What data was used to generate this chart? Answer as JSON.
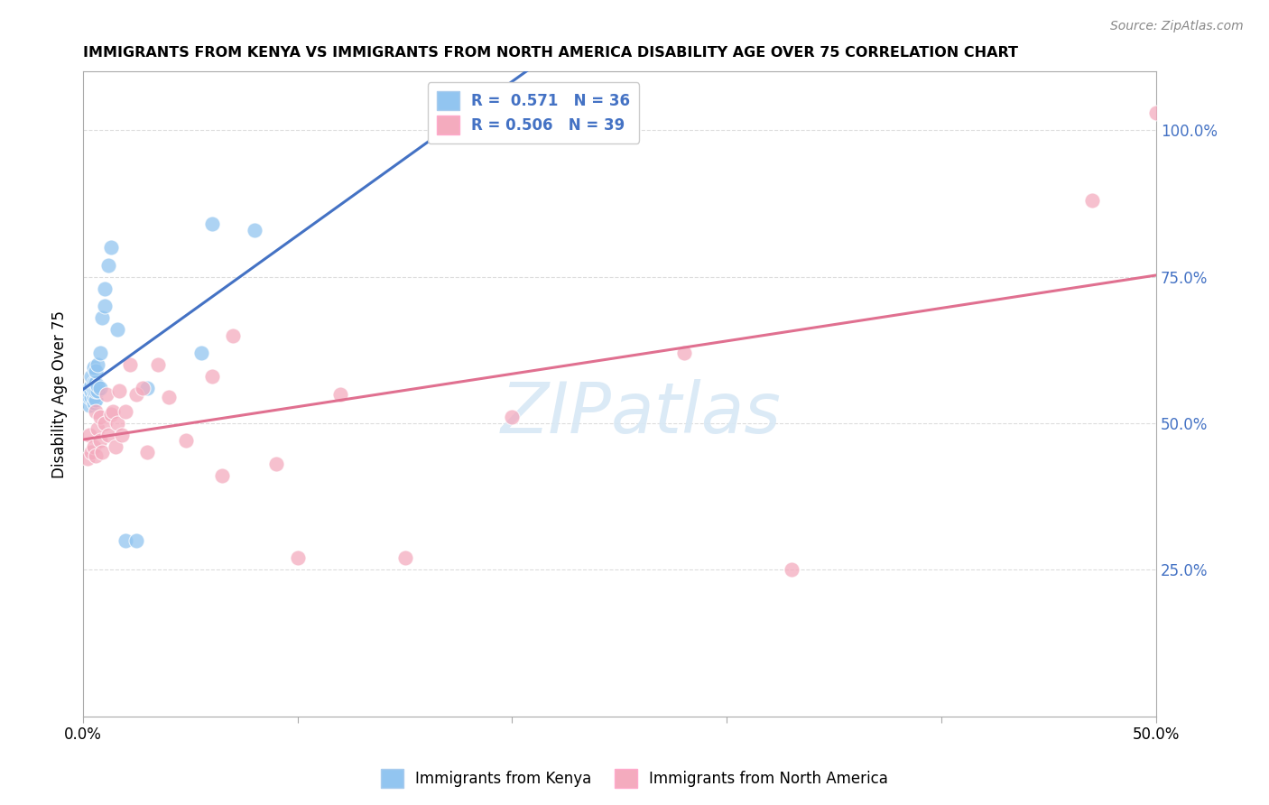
{
  "title": "IMMIGRANTS FROM KENYA VS IMMIGRANTS FROM NORTH AMERICA DISABILITY AGE OVER 75 CORRELATION CHART",
  "source": "Source: ZipAtlas.com",
  "ylabel": "Disability Age Over 75",
  "legend_label1": "Immigrants from Kenya",
  "legend_label2": "Immigrants from North America",
  "R1": "0.571",
  "N1": "36",
  "R2": "0.506",
  "N2": "39",
  "color_kenya": "#92C5F0",
  "color_na": "#F4ABBE",
  "color_line_kenya": "#4472C4",
  "color_line_na": "#E07090",
  "kenya_x": [
    0.001,
    0.002,
    0.002,
    0.003,
    0.003,
    0.003,
    0.004,
    0.004,
    0.004,
    0.004,
    0.005,
    0.005,
    0.005,
    0.005,
    0.005,
    0.006,
    0.006,
    0.006,
    0.006,
    0.007,
    0.007,
    0.007,
    0.008,
    0.008,
    0.009,
    0.01,
    0.01,
    0.012,
    0.013,
    0.016,
    0.02,
    0.025,
    0.03,
    0.055,
    0.06,
    0.08
  ],
  "kenya_y": [
    0.545,
    0.545,
    0.555,
    0.53,
    0.545,
    0.56,
    0.545,
    0.555,
    0.565,
    0.58,
    0.535,
    0.545,
    0.555,
    0.57,
    0.595,
    0.54,
    0.555,
    0.57,
    0.59,
    0.555,
    0.565,
    0.6,
    0.56,
    0.62,
    0.68,
    0.7,
    0.73,
    0.77,
    0.8,
    0.66,
    0.3,
    0.3,
    0.56,
    0.62,
    0.84,
    0.83
  ],
  "na_x": [
    0.002,
    0.003,
    0.004,
    0.005,
    0.006,
    0.006,
    0.007,
    0.008,
    0.008,
    0.009,
    0.01,
    0.011,
    0.012,
    0.013,
    0.014,
    0.015,
    0.016,
    0.017,
    0.018,
    0.02,
    0.022,
    0.025,
    0.028,
    0.03,
    0.035,
    0.04,
    0.048,
    0.06,
    0.065,
    0.07,
    0.09,
    0.1,
    0.12,
    0.15,
    0.2,
    0.28,
    0.33,
    0.47,
    0.5
  ],
  "na_y": [
    0.44,
    0.48,
    0.45,
    0.46,
    0.445,
    0.52,
    0.49,
    0.47,
    0.51,
    0.45,
    0.5,
    0.55,
    0.48,
    0.515,
    0.52,
    0.46,
    0.5,
    0.555,
    0.48,
    0.52,
    0.6,
    0.55,
    0.56,
    0.45,
    0.6,
    0.545,
    0.47,
    0.58,
    0.41,
    0.65,
    0.43,
    0.27,
    0.55,
    0.27,
    0.51,
    0.62,
    0.25,
    0.88,
    1.03
  ],
  "xlim": [
    0.0,
    0.5
  ],
  "ylim": [
    0.0,
    1.1
  ],
  "ytick_vals": [
    0.25,
    0.5,
    0.75,
    1.0
  ],
  "ytick_labels": [
    "25.0%",
    "50.0%",
    "75.0%",
    "100.0%"
  ],
  "xtick_positions": [
    0.0,
    0.1,
    0.2,
    0.3,
    0.4,
    0.5
  ],
  "background": "#FFFFFF",
  "grid_color": "#DDDDDD"
}
